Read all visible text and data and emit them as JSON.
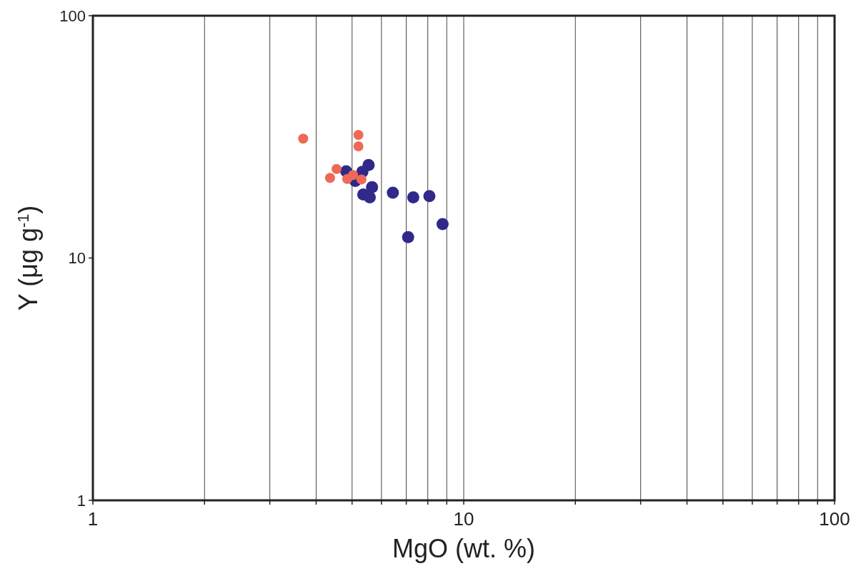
{
  "chart_data": {
    "type": "scatter",
    "xlabel": "MgO (wt. %)",
    "ylabel": "Y (μg g$^{-1}$)",
    "log": "xy",
    "grid": "x",
    "marker": "circle",
    "xlim": [
      1,
      100
    ],
    "ylim": [
      1,
      100
    ],
    "xticks": [
      1,
      {
        "value": 2,
        "label": null
      },
      {
        "value": 3,
        "label": null
      },
      {
        "value": 4,
        "label": null
      },
      {
        "value": 5,
        "label": null
      },
      {
        "value": 6,
        "label": null
      },
      {
        "value": 7,
        "label": null
      },
      {
        "value": 8,
        "label": null
      },
      {
        "value": 9,
        "label": null
      },
      10,
      {
        "value": 20,
        "label": null
      },
      {
        "value": 30,
        "label": null
      },
      {
        "value": 40,
        "label": null
      },
      {
        "value": 50,
        "label": null
      },
      {
        "value": 60,
        "label": null
      },
      {
        "value": 70,
        "label": null
      },
      {
        "value": 80,
        "label": null
      },
      {
        "value": 90,
        "label": null
      },
      100
    ],
    "yticks": [
      1,
      10,
      100
    ],
    "series": [
      {
        "color": "#30298a",
        "x": [
          4.82,
          5.54,
          5.33,
          5.1,
          5.66,
          5.36,
          5.58,
          6.44,
          7.31,
          8.08,
          8.77,
          7.08
        ],
        "values": [
          22.8,
          24.2,
          22.7,
          20.8,
          19.6,
          18.3,
          17.8,
          18.6,
          17.8,
          18.0,
          13.8,
          12.2
        ]
      },
      {
        "color": "#ee6a55",
        "x": [
          3.69,
          5.2,
          5.2,
          4.54,
          4.36,
          4.85,
          5.03,
          5.3
        ],
        "values": [
          31.1,
          32.2,
          28.9,
          23.3,
          21.4,
          21.2,
          22.0,
          21.1
        ]
      }
    ]
  }
}
